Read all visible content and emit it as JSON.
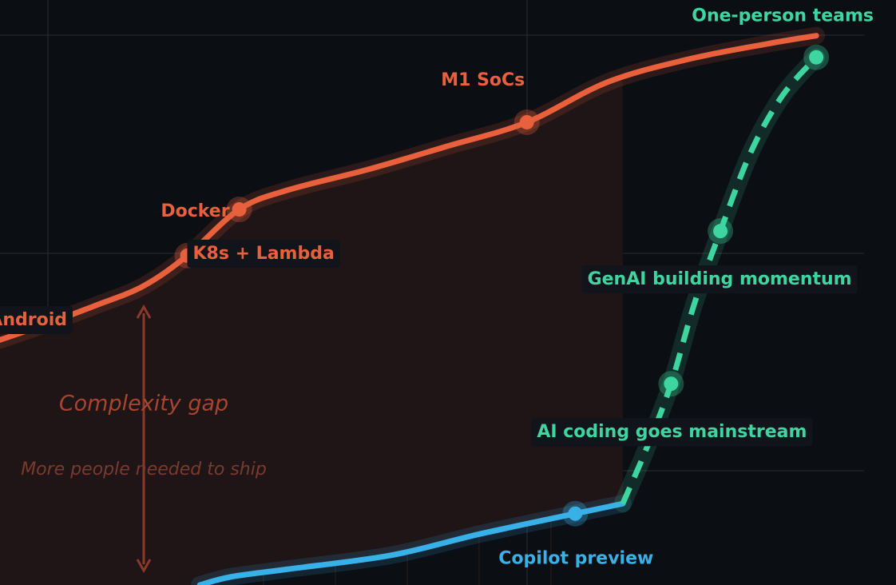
{
  "chart_data": {
    "type": "line",
    "xlim": [
      0,
      100
    ],
    "ylim": [
      0,
      100
    ],
    "series": [
      {
        "color": "#e8603c",
        "dashed": false,
        "x": [
          0,
          5.3,
          10.7,
          16.0,
          20.9,
          26.7,
          32.1,
          41.0,
          49.9,
          58.8,
          67.7,
          76.6,
          85.6,
          91.1
        ],
        "values": [
          41.9,
          44.7,
          47.8,
          51.1,
          56.3,
          64.2,
          67.5,
          71.0,
          75.0,
          79.1,
          85.9,
          89.8,
          92.5,
          93.9
        ],
        "points": [
          {
            "label": "K8s + Lambda",
            "x": 20.9,
            "y": 56.3
          },
          {
            "label": "Docker",
            "x": 26.7,
            "y": 64.2
          },
          {
            "label": "M1 SoCs",
            "x": 58.8,
            "y": 79.1
          }
        ]
      },
      {
        "color": "#38b0e8",
        "dashed": false,
        "x": [
          22.3,
          25.8,
          32.1,
          43.7,
          53.5,
          64.2,
          69.5
        ],
        "values": [
          0,
          1.4,
          2.7,
          5.1,
          8.7,
          12.2,
          13.9
        ],
        "points": [
          {
            "label": "Copilot preview",
            "x": 64.2,
            "y": 12.2
          }
        ]
      },
      {
        "color": "#3dd6a0",
        "dashed": true,
        "x": [
          69.5,
          72.2,
          74.9,
          77.5,
          80.4,
          83.8,
          87.3,
          91.1
        ],
        "values": [
          13.9,
          23.5,
          34.4,
          48.1,
          60.5,
          74.0,
          83.6,
          90.2
        ],
        "points": [
          {
            "label": "AI coding goes mainstream",
            "x": 74.9,
            "y": 34.4
          },
          {
            "label": "GenAI building momentum",
            "x": 80.4,
            "y": 60.5
          },
          {
            "label": "One-person teams",
            "x": 91.1,
            "y": 90.2
          }
        ]
      }
    ],
    "annotations": [
      "Android",
      "Complexity gap",
      "More people needed to ship"
    ]
  }
}
